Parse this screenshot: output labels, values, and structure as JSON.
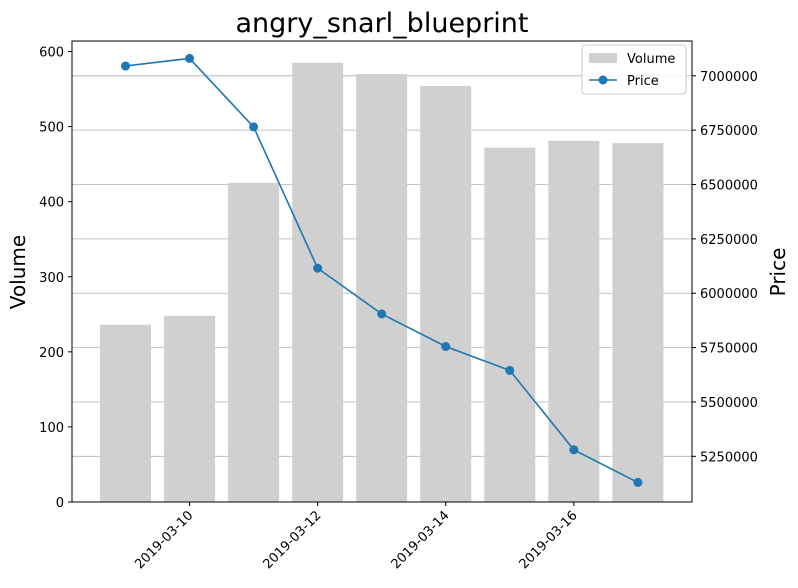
{
  "chart_data": {
    "type": "bar+line",
    "title": "angry_snarl_blueprint",
    "categories": [
      "2019-03-09",
      "2019-03-10",
      "2019-03-11",
      "2019-03-12",
      "2019-03-13",
      "2019-03-14",
      "2019-03-15",
      "2019-03-16",
      "2019-03-17"
    ],
    "x_tick_labels": [
      "2019-03-10",
      "2019-03-12",
      "2019-03-14",
      "2019-03-16"
    ],
    "ylabel_left": "Volume",
    "ylabel_right": "Price",
    "ylim_left": [
      0,
      614
    ],
    "yticks_left": [
      0,
      100,
      200,
      300,
      400,
      500,
      600
    ],
    "ylim_right": [
      5040000,
      7160000
    ],
    "yticks_right": [
      5250000,
      5500000,
      5750000,
      6000000,
      6250000,
      6500000,
      6750000,
      7000000
    ],
    "grid": "horizontal on right axis",
    "legend_position": "top-right",
    "series": [
      {
        "name": "Volume",
        "type": "bar",
        "axis": "left",
        "color": "#d0d0d0",
        "values": [
          236,
          248,
          425,
          585,
          570,
          554,
          472,
          481,
          478
        ]
      },
      {
        "name": "Price",
        "type": "line",
        "axis": "right",
        "color": "#1f77b4",
        "values": [
          7045000,
          7080000,
          6765000,
          6115000,
          5905000,
          5755000,
          5645000,
          5280000,
          5130000
        ]
      }
    ]
  }
}
